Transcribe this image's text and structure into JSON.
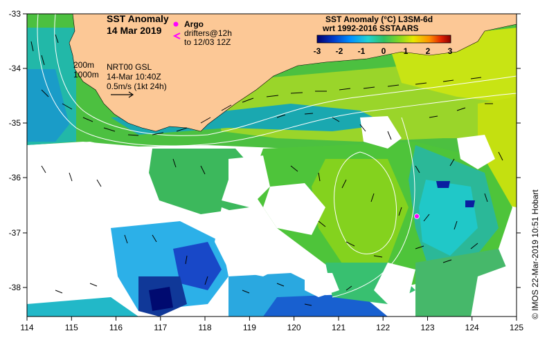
{
  "header": {
    "title_line1": "SST Anomaly",
    "title_line2": "14 Mar 2019"
  },
  "legend": {
    "argo_label": "Argo",
    "drifters_label": "drifters@12h",
    "drifters_to": "to 12/03 12Z",
    "colorbar_title": "SST Anomaly (°C) L3SM-6d",
    "colorbar_subtitle": "wrt 1992-2016 SSTAARS",
    "colorbar_ticks": [
      "-3",
      "-2",
      "-1",
      "0",
      "1",
      "2",
      "3"
    ],
    "colors": [
      "#00006e",
      "#0038c8",
      "#0090ff",
      "#20d2d2",
      "#30c060",
      "#88d820",
      "#e8e800",
      "#ff9000",
      "#e02000",
      "#8a0000"
    ]
  },
  "annotations": {
    "isobath_200": "200m",
    "isobath_1000": "1000m",
    "current_source": "NRT00 GSL",
    "current_time": "14-Mar 10:40Z",
    "vector_scale": "0.5m/s (1kt 24h)"
  },
  "axes": {
    "x_ticks": [
      "114",
      "115",
      "116",
      "117",
      "118",
      "119",
      "120",
      "121",
      "122",
      "123",
      "124",
      "125"
    ],
    "y_ticks": [
      "-33",
      "-34",
      "-35",
      "-36",
      "-37",
      "-38"
    ]
  },
  "credit": "© IMOS 22-Mar-2019 10:51 Hobart",
  "style": {
    "land": "#fcc896",
    "argo_marker": "#ff00ff",
    "isobath": "#ffffff"
  }
}
